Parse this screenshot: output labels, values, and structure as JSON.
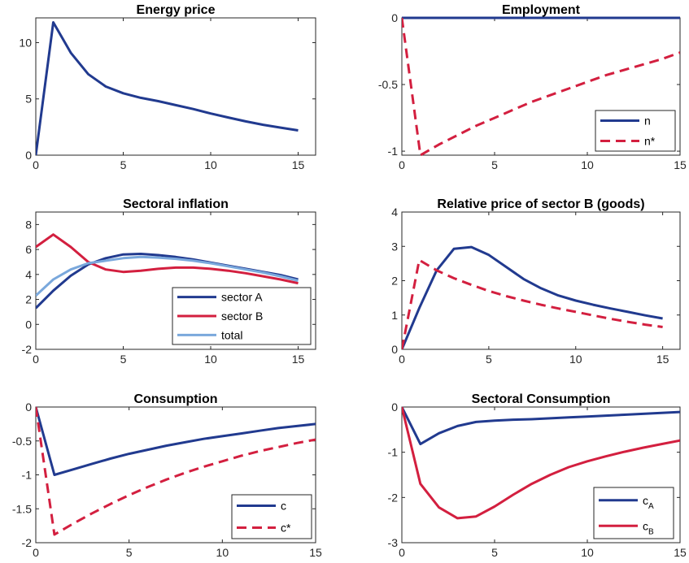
{
  "colors": {
    "blue": "#213a8f",
    "red": "#d31f3f",
    "lightblue": "#7aa8dc",
    "axis": "#262626"
  },
  "chart_data": [
    {
      "id": "energy",
      "type": "line",
      "title": "Energy price",
      "xlim": [
        0,
        16
      ],
      "ylim": [
        0,
        12.2
      ],
      "xticks": [
        0,
        5,
        10,
        15
      ],
      "xticklabels": [
        "0",
        "5",
        "10",
        "15"
      ],
      "yticks": [
        0,
        5,
        10
      ],
      "yticklabels": [
        "0",
        "5",
        "10"
      ],
      "x": [
        0,
        1,
        2,
        3,
        4,
        5,
        6,
        7,
        8,
        9,
        10,
        11,
        12,
        13,
        14,
        15
      ],
      "series": [
        {
          "values": [
            0,
            11.8,
            9.1,
            7.2,
            6.1,
            5.5,
            5.1,
            4.8,
            4.45,
            4.1,
            3.7,
            3.35,
            3.0,
            2.7,
            2.45,
            2.2
          ],
          "color": "#213a8f",
          "dash": "solid"
        }
      ],
      "legend": null
    },
    {
      "id": "employment",
      "type": "line",
      "title": "Employment",
      "xlim": [
        0,
        15
      ],
      "ylim": [
        -1.03,
        0
      ],
      "xticks": [
        0,
        5,
        10,
        15
      ],
      "xticklabels": [
        "0",
        "5",
        "10",
        "15"
      ],
      "yticks": [
        0,
        -0.5,
        -1
      ],
      "yticklabels": [
        "0",
        "-0.5",
        "-1"
      ],
      "x": [
        0,
        1,
        2,
        3,
        4,
        5,
        6,
        7,
        8,
        9,
        10,
        11,
        12,
        13,
        14,
        15
      ],
      "series": [
        {
          "name": "n",
          "values": [
            0,
            0,
            0,
            0,
            0,
            0,
            0,
            0,
            0,
            0,
            0,
            0,
            0,
            0,
            0,
            0
          ],
          "color": "#213a8f",
          "dash": "solid"
        },
        {
          "name": "n*",
          "values": [
            0,
            -1.03,
            -0.95,
            -0.88,
            -0.81,
            -0.75,
            -0.69,
            -0.63,
            -0.58,
            -0.53,
            -0.48,
            -0.43,
            -0.39,
            -0.35,
            -0.31,
            -0.26
          ],
          "color": "#d31f3f",
          "dash": "dashed"
        }
      ],
      "legend": {
        "position": "bottom-right",
        "entries": [
          "n",
          "n*"
        ]
      }
    },
    {
      "id": "sectoral-inflation",
      "type": "line",
      "title": "Sectoral inflation",
      "xlim": [
        0,
        16
      ],
      "ylim": [
        -2,
        9
      ],
      "xticks": [
        0,
        5,
        10,
        15
      ],
      "xticklabels": [
        "0",
        "5",
        "10",
        "15"
      ],
      "yticks": [
        -2,
        0,
        2,
        4,
        6,
        8
      ],
      "yticklabels": [
        "-2",
        "0",
        "2",
        "4",
        "6",
        "8"
      ],
      "x": [
        0,
        1,
        2,
        3,
        4,
        5,
        6,
        7,
        8,
        9,
        10,
        11,
        12,
        13,
        14,
        15
      ],
      "series": [
        {
          "name": "sector A",
          "values": [
            1.3,
            2.7,
            3.9,
            4.8,
            5.3,
            5.6,
            5.65,
            5.55,
            5.4,
            5.2,
            4.95,
            4.7,
            4.45,
            4.2,
            3.95,
            3.6
          ],
          "color": "#213a8f",
          "dash": "solid"
        },
        {
          "name": "sector B",
          "values": [
            6.2,
            7.2,
            6.2,
            5.0,
            4.4,
            4.2,
            4.3,
            4.45,
            4.55,
            4.55,
            4.45,
            4.3,
            4.1,
            3.85,
            3.6,
            3.3
          ],
          "color": "#d31f3f",
          "dash": "solid"
        },
        {
          "name": "total",
          "values": [
            2.3,
            3.6,
            4.4,
            4.9,
            5.1,
            5.3,
            5.4,
            5.35,
            5.25,
            5.1,
            4.9,
            4.65,
            4.4,
            4.15,
            3.85,
            3.5
          ],
          "color": "#7aa8dc",
          "dash": "solid"
        }
      ],
      "legend": {
        "position": "bottom-right",
        "entries": [
          "sector A",
          "sector B",
          "total"
        ]
      }
    },
    {
      "id": "relative-price",
      "type": "line",
      "title": "Relative price of sector B (goods)",
      "xlim": [
        0,
        16
      ],
      "ylim": [
        0,
        4
      ],
      "xticks": [
        0,
        5,
        10,
        15
      ],
      "xticklabels": [
        "0",
        "5",
        "10",
        "15"
      ],
      "yticks": [
        0,
        1,
        2,
        3,
        4
      ],
      "yticklabels": [
        "0",
        "1",
        "2",
        "3",
        "4"
      ],
      "x": [
        0,
        1,
        2,
        3,
        4,
        5,
        6,
        7,
        8,
        9,
        10,
        11,
        12,
        13,
        14,
        15
      ],
      "series": [
        {
          "values": [
            0,
            1.2,
            2.3,
            2.93,
            2.98,
            2.75,
            2.4,
            2.05,
            1.78,
            1.57,
            1.42,
            1.3,
            1.19,
            1.09,
            0.99,
            0.9
          ],
          "color": "#213a8f",
          "dash": "solid"
        },
        {
          "values": [
            0,
            2.6,
            2.3,
            2.07,
            1.88,
            1.7,
            1.55,
            1.42,
            1.3,
            1.19,
            1.09,
            0.99,
            0.89,
            0.8,
            0.72,
            0.65
          ],
          "color": "#d31f3f",
          "dash": "dashed"
        }
      ],
      "legend": null
    },
    {
      "id": "consumption",
      "type": "line",
      "title": "Consumption",
      "xlim": [
        0,
        15
      ],
      "ylim": [
        -2,
        0
      ],
      "xticks": [
        0,
        5,
        10,
        15
      ],
      "xticklabels": [
        "0",
        "5",
        "10",
        "15"
      ],
      "yticks": [
        0,
        -0.5,
        -1,
        -1.5,
        -2
      ],
      "yticklabels": [
        "0",
        "-0.5",
        "-1",
        "-1.5",
        "-2"
      ],
      "x": [
        0,
        1,
        2,
        3,
        4,
        5,
        6,
        7,
        8,
        9,
        10,
        11,
        12,
        13,
        14,
        15
      ],
      "series": [
        {
          "name": "c",
          "values": [
            0,
            -1.0,
            -0.92,
            -0.84,
            -0.76,
            -0.69,
            -0.63,
            -0.57,
            -0.52,
            -0.47,
            -0.43,
            -0.39,
            -0.35,
            -0.31,
            -0.28,
            -0.25
          ],
          "color": "#213a8f",
          "dash": "solid"
        },
        {
          "name": "c*",
          "values": [
            0,
            -1.88,
            -1.72,
            -1.57,
            -1.43,
            -1.3,
            -1.18,
            -1.07,
            -0.97,
            -0.88,
            -0.8,
            -0.72,
            -0.65,
            -0.59,
            -0.53,
            -0.48
          ],
          "color": "#d31f3f",
          "dash": "dashed"
        }
      ],
      "legend": {
        "position": "bottom-right",
        "entries": [
          "c",
          "c*"
        ]
      }
    },
    {
      "id": "sectoral-consumption",
      "type": "line",
      "title": "Sectoral Consumption",
      "xlim": [
        0,
        15
      ],
      "ylim": [
        -3,
        0
      ],
      "xticks": [
        0,
        5,
        10,
        15
      ],
      "xticklabels": [
        "0",
        "5",
        "10",
        "15"
      ],
      "yticks": [
        0,
        -1,
        -2,
        -3
      ],
      "yticklabels": [
        "0",
        "-1",
        "-2",
        "-3"
      ],
      "x": [
        0,
        1,
        2,
        3,
        4,
        5,
        6,
        7,
        8,
        9,
        10,
        11,
        12,
        13,
        14,
        15
      ],
      "series": [
        {
          "name": "c_A",
          "values": [
            0,
            -0.82,
            -0.58,
            -0.42,
            -0.33,
            -0.3,
            -0.28,
            -0.27,
            -0.25,
            -0.23,
            -0.21,
            -0.19,
            -0.17,
            -0.15,
            -0.13,
            -0.11
          ],
          "color": "#213a8f",
          "dash": "solid"
        },
        {
          "name": "c_B",
          "values": [
            0,
            -1.7,
            -2.22,
            -2.46,
            -2.42,
            -2.2,
            -1.94,
            -1.7,
            -1.5,
            -1.33,
            -1.2,
            -1.09,
            -0.99,
            -0.9,
            -0.82,
            -0.74
          ],
          "color": "#d31f3f",
          "dash": "solid"
        }
      ],
      "legend": {
        "position": "bottom-right",
        "entries": [
          {
            "base": "c",
            "sub": "A"
          },
          {
            "base": "c",
            "sub": "B"
          }
        ]
      }
    }
  ]
}
